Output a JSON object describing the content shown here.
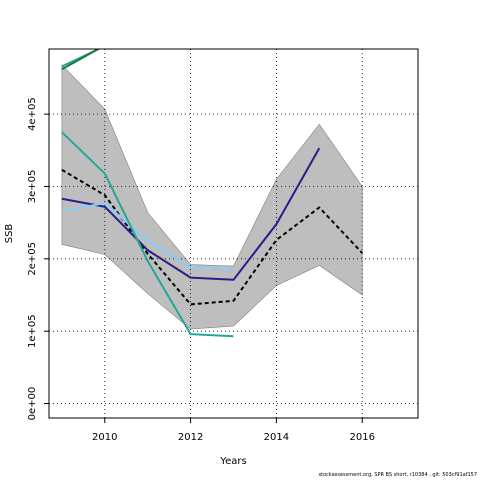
{
  "chart_data": {
    "type": "line",
    "xlabel": "Years",
    "ylabel": "SSB",
    "xlim": [
      2008.7,
      2017.3
    ],
    "ylim": [
      -20000,
      490000
    ],
    "x_ticks": [
      2010,
      2012,
      2014,
      2016
    ],
    "x_tick_labels": [
      "2010",
      "2012",
      "2014",
      "2016"
    ],
    "y_ticks": [
      0,
      100000,
      200000,
      300000,
      400000
    ],
    "y_tick_labels": [
      "0e+00",
      "1e+05",
      "2e+05",
      "3e+05",
      "4e+05"
    ],
    "grid": true,
    "band": {
      "x": [
        2009,
        2010,
        2011,
        2012,
        2013,
        2014,
        2015,
        2016
      ],
      "upper": [
        468000,
        407000,
        264000,
        192000,
        190000,
        310000,
        386000,
        300000
      ],
      "lower": [
        220000,
        206000,
        152000,
        103000,
        107000,
        163000,
        191000,
        150000
      ],
      "color": "#bebebe"
    },
    "series": [
      {
        "color": "#000000",
        "style": "dashed",
        "width": 2,
        "x": [
          2009,
          2010,
          2011,
          2012,
          2013,
          2014,
          2015,
          2016
        ],
        "values": [
          323000,
          288000,
          207000,
          137000,
          142000,
          226000,
          271000,
          208000
        ]
      },
      {
        "color": "#2b1d87",
        "style": "solid",
        "width": 2,
        "x": [
          2009,
          2010,
          2011,
          2012,
          2013,
          2014,
          2015
        ],
        "values": [
          283000,
          272000,
          212000,
          174000,
          171000,
          248000,
          353000
        ]
      },
      {
        "color": "#87cefa",
        "style": "solid",
        "width": 2,
        "x": [
          2009,
          2010,
          2011,
          2012,
          2013
        ],
        "values": [
          266000,
          277000,
          225000,
          188000,
          186000
        ]
      },
      {
        "color": "#26a69a",
        "style": "solid",
        "width": 2,
        "x": [
          2009,
          2010,
          2011,
          2012,
          2013
        ],
        "values": [
          375000,
          318000,
          197000,
          96000,
          93000
        ]
      },
      {
        "color": "#26a69a",
        "style": "solid",
        "width": 2,
        "x": [
          2009,
          2009.5,
          2010,
          2011,
          2012
        ],
        "values": [
          466000,
          480000,
          494000,
          500000,
          491000
        ]
      },
      {
        "color": "#1f7a3a",
        "style": "solid",
        "width": 2,
        "x": [
          2009,
          2010,
          2011,
          2012
        ],
        "values": [
          462000,
          495000,
          520000,
          540000
        ]
      }
    ]
  },
  "footer": {
    "text": "stockassessment.org, SPR BS short, r10384 , git: 503cf91af157"
  }
}
